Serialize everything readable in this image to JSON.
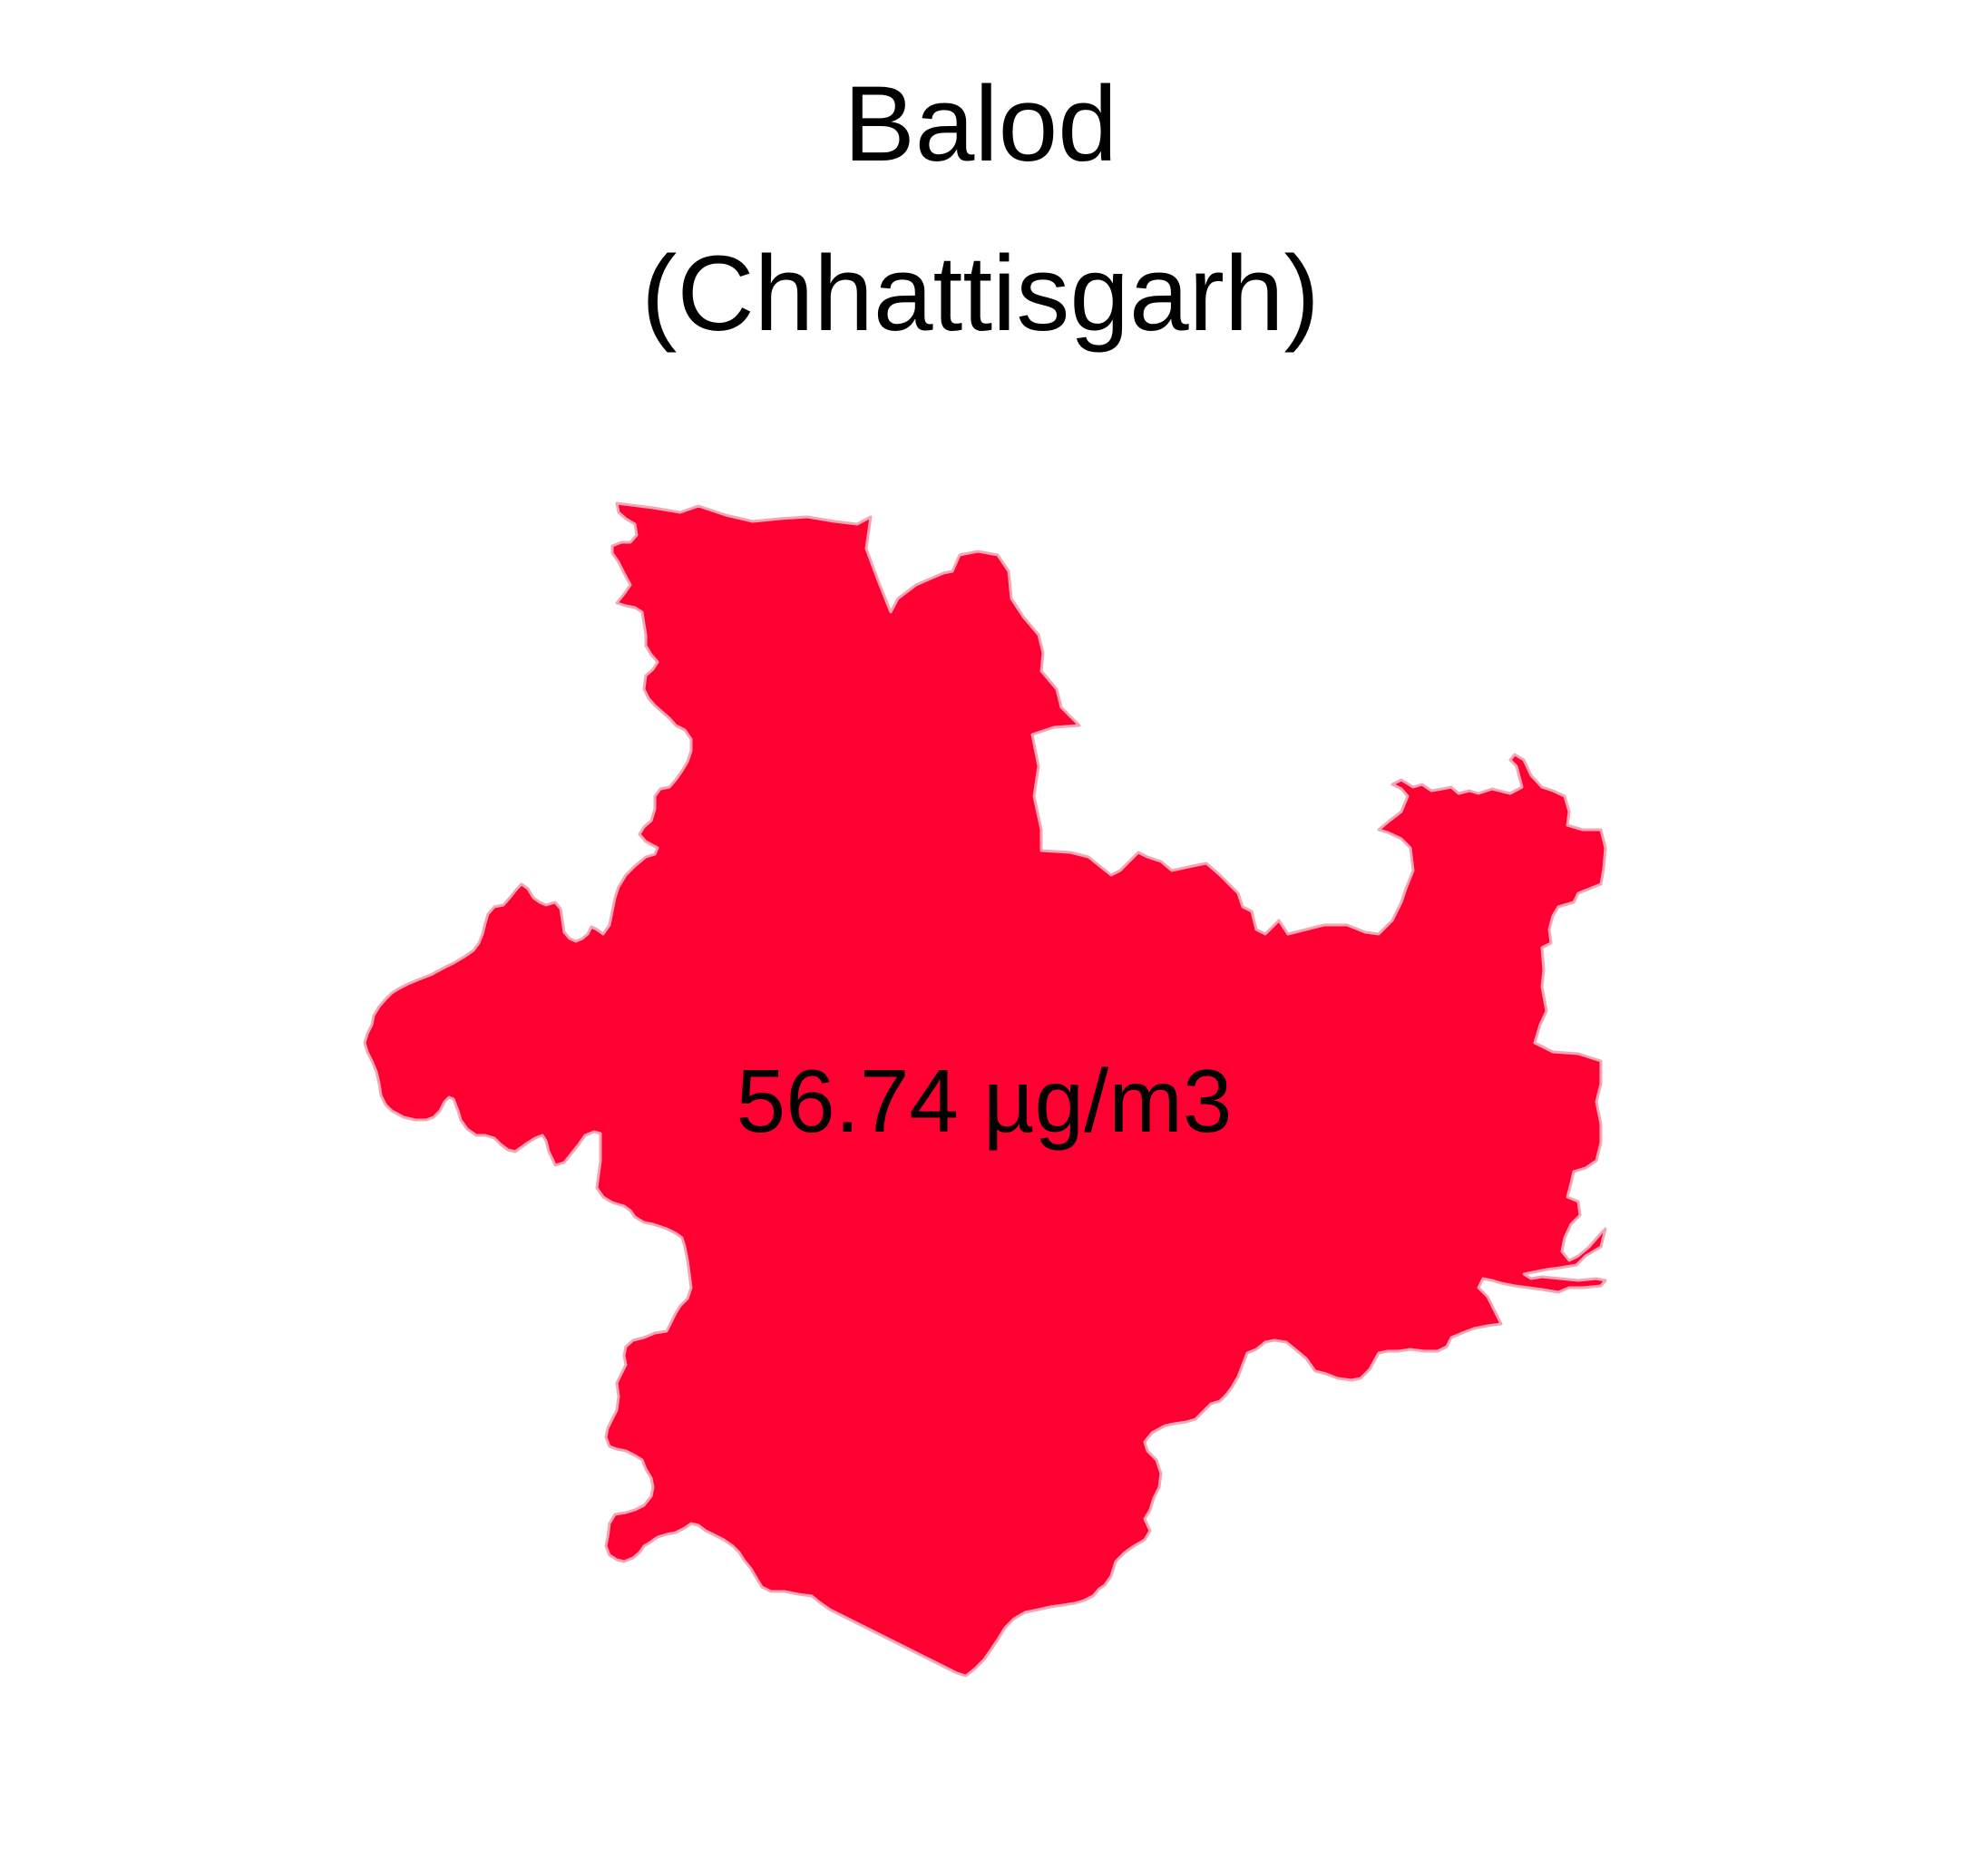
{
  "map": {
    "title_line_1": "Balod",
    "title_line_2": "(Chhattisgarh)",
    "region_value_label": "56.74 µg/m3",
    "region_fill_color": "#FF0033",
    "region_border_color": "#F4A6B4",
    "background_color": "#FFFFFF"
  }
}
